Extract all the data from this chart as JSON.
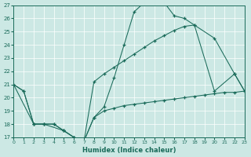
{
  "xlabel": "Humidex (Indice chaleur)",
  "bg_color": "#cce8e4",
  "line_color": "#1a6b5a",
  "grid_color": "#ffffff",
  "xlim": [
    0,
    23
  ],
  "ylim": [
    17,
    27
  ],
  "xticks": [
    0,
    1,
    2,
    3,
    4,
    5,
    6,
    7,
    8,
    9,
    10,
    11,
    12,
    13,
    14,
    15,
    16,
    17,
    18,
    19,
    20,
    21,
    22,
    23
  ],
  "yticks": [
    17,
    18,
    19,
    20,
    21,
    22,
    23,
    24,
    25,
    26,
    27
  ],
  "series": [
    {
      "x": [
        0,
        1,
        2,
        3,
        4,
        5,
        6,
        7,
        8,
        9,
        10,
        11,
        12,
        13,
        14,
        15,
        16,
        17,
        18,
        20,
        22,
        23
      ],
      "y": [
        21.0,
        20.5,
        18.0,
        18.0,
        18.0,
        17.5,
        17.0,
        16.7,
        18.5,
        19.3,
        21.5,
        24.0,
        26.5,
        27.2,
        27.2,
        27.2,
        26.2,
        26.0,
        25.5,
        24.5,
        21.8,
        20.5
      ]
    },
    {
      "x": [
        0,
        2,
        3,
        5,
        6,
        7,
        8,
        9,
        10,
        11,
        12,
        13,
        14,
        15,
        16,
        17,
        18,
        20,
        22,
        23
      ],
      "y": [
        21.0,
        18.0,
        18.0,
        17.5,
        17.0,
        16.7,
        21.2,
        21.8,
        22.3,
        22.8,
        23.3,
        23.8,
        24.3,
        24.7,
        25.1,
        25.4,
        25.5,
        20.5,
        21.8,
        20.5
      ]
    },
    {
      "x": [
        0,
        1,
        2,
        3,
        4,
        5,
        6,
        7,
        8,
        9,
        10,
        11,
        12,
        13,
        14,
        15,
        16,
        17,
        18,
        19,
        20,
        21,
        22,
        23
      ],
      "y": [
        21.0,
        20.5,
        18.0,
        18.0,
        18.0,
        17.5,
        17.0,
        16.7,
        18.5,
        19.0,
        19.2,
        19.4,
        19.5,
        19.6,
        19.7,
        19.8,
        19.9,
        20.0,
        20.1,
        20.2,
        20.3,
        20.4,
        20.4,
        20.5
      ]
    }
  ]
}
